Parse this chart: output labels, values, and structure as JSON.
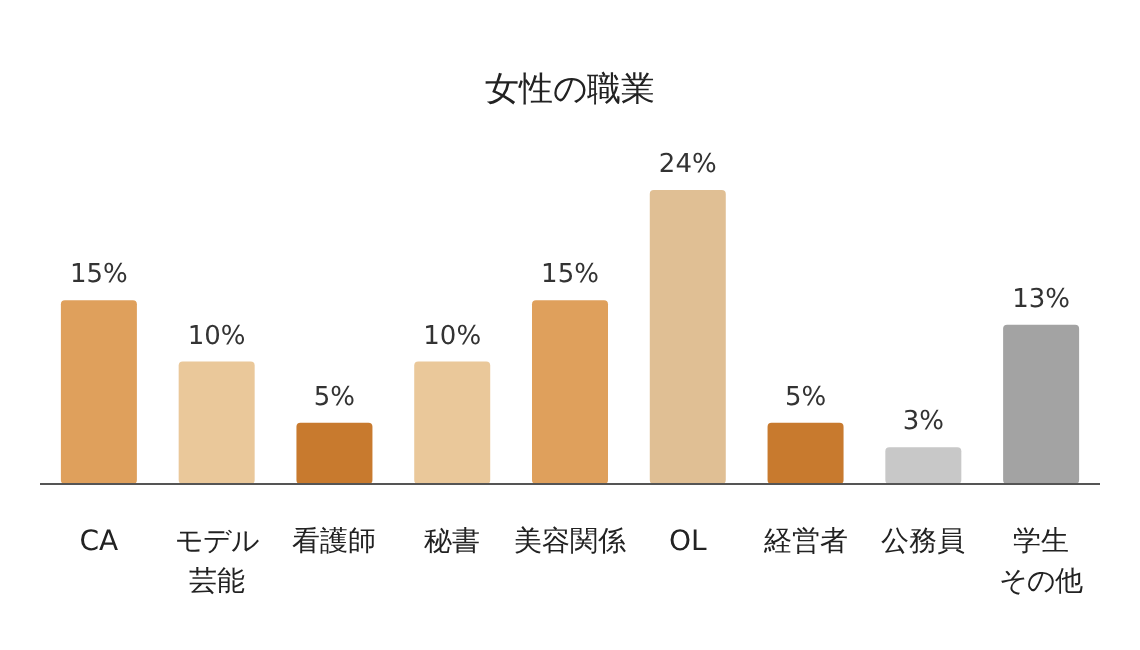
{
  "chart_data": {
    "type": "bar",
    "title": "女性の職業",
    "categories": [
      "CA",
      "モデル芸能",
      "看護師",
      "秘書",
      "美容関係",
      "OL",
      "経営者",
      "公務員",
      "学生その他"
    ],
    "values": [
      15,
      10,
      5,
      10,
      15,
      24,
      5,
      3,
      13
    ],
    "value_labels": [
      "15%",
      "10%",
      "5%",
      "10%",
      "15%",
      "24%",
      "5%",
      "3%",
      "13%"
    ],
    "colors": [
      "#dfa05c",
      "#eac89a",
      "#c87a2e",
      "#eac89a",
      "#dfa05c",
      "#e0bf94",
      "#c87a2e",
      "#c8c8c8",
      "#a3a3a3"
    ]
  }
}
